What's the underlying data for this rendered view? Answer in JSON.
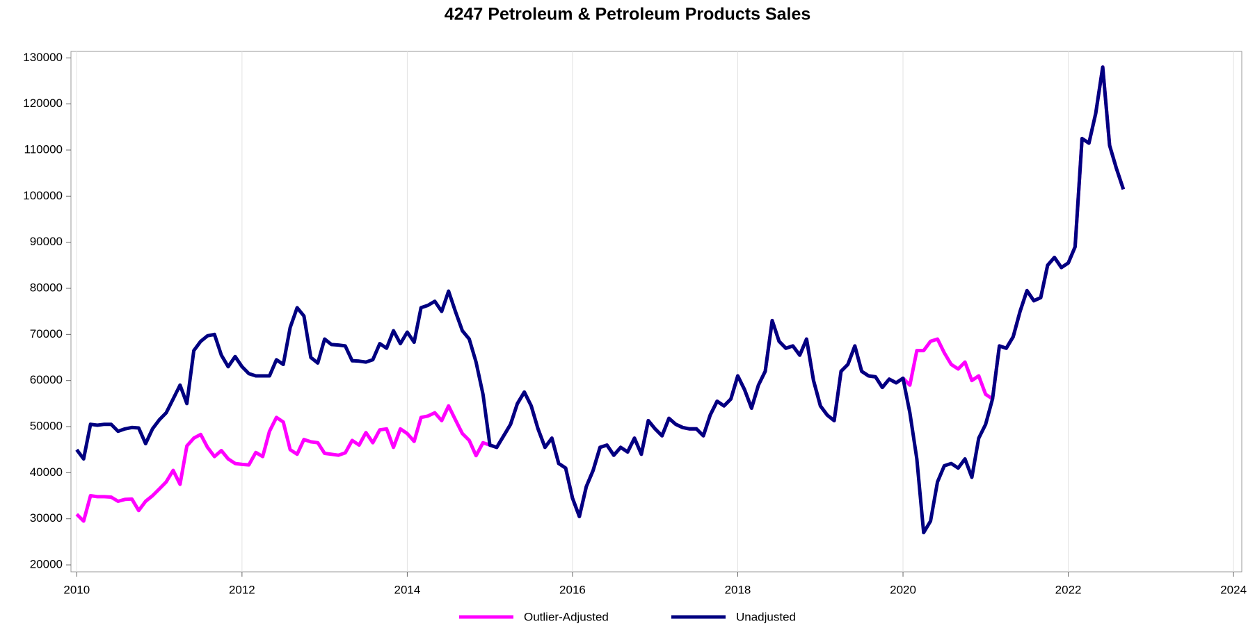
{
  "chart_data": {
    "type": "line",
    "title": "4247 Petroleum & Petroleum Products Sales",
    "x": [
      2010,
      2010.083,
      2010.167,
      2010.25,
      2010.333,
      2010.417,
      2010.5,
      2010.583,
      2010.667,
      2010.75,
      2010.833,
      2010.917,
      2011,
      2011.083,
      2011.167,
      2011.25,
      2011.333,
      2011.417,
      2011.5,
      2011.583,
      2011.667,
      2011.75,
      2011.833,
      2011.917,
      2012,
      2012.083,
      2012.167,
      2012.25,
      2012.333,
      2012.417,
      2012.5,
      2012.583,
      2012.667,
      2012.75,
      2012.833,
      2012.917,
      2013,
      2013.083,
      2013.167,
      2013.25,
      2013.333,
      2013.417,
      2013.5,
      2013.583,
      2013.667,
      2013.75,
      2013.833,
      2013.917,
      2014,
      2014.083,
      2014.167,
      2014.25,
      2014.333,
      2014.417,
      2014.5,
      2014.583,
      2014.667,
      2014.75,
      2014.833,
      2014.917,
      2015,
      2015.083,
      2015.167,
      2015.25,
      2015.333,
      2015.417,
      2015.5,
      2015.583,
      2015.667,
      2015.75,
      2015.833,
      2015.917,
      2016,
      2016.083,
      2016.167,
      2016.25,
      2016.333,
      2016.417,
      2016.5,
      2016.583,
      2016.667,
      2016.75,
      2016.833,
      2016.917,
      2017,
      2017.083,
      2017.167,
      2017.25,
      2017.333,
      2017.417,
      2017.5,
      2017.583,
      2017.667,
      2017.75,
      2017.833,
      2017.917,
      2018,
      2018.083,
      2018.167,
      2018.25,
      2018.333,
      2018.417,
      2018.5,
      2018.583,
      2018.667,
      2018.75,
      2018.833,
      2018.917,
      2019,
      2019.083,
      2019.167,
      2019.25,
      2019.333,
      2019.417,
      2019.5,
      2019.583,
      2019.667,
      2019.75,
      2019.833,
      2019.917,
      2020,
      2020.083,
      2020.167,
      2020.25,
      2020.333,
      2020.417,
      2020.5,
      2020.583,
      2020.667,
      2020.75,
      2020.833,
      2020.917,
      2021,
      2021.083,
      2021.167,
      2021.25,
      2021.333,
      2021.417,
      2021.5,
      2021.583,
      2021.667,
      2021.75,
      2021.833,
      2021.917,
      2022,
      2022.083,
      2022.167,
      2022.25,
      2022.333,
      2022.417,
      2022.5,
      2022.583,
      2022.667
    ],
    "series": [
      {
        "name": "Outlier-Adjusted",
        "color": "#ff00ff",
        "values": [
          31000,
          29500,
          35000,
          34800,
          34800,
          34700,
          33800,
          34200,
          34300,
          31800,
          33800,
          35000,
          36500,
          38000,
          40500,
          37500,
          45800,
          47500,
          48300,
          45500,
          43500,
          44800,
          43000,
          42000,
          41800,
          41700,
          44400,
          43500,
          49000,
          52000,
          51000,
          45000,
          44000,
          47200,
          46700,
          46500,
          44200,
          44000,
          43800,
          44300,
          47000,
          46000,
          48700,
          46500,
          49300,
          49500,
          45500,
          49500,
          48500,
          46800,
          52000,
          52300,
          53000,
          51300,
          54500,
          51500,
          48500,
          47000,
          43700,
          46500,
          46000,
          45500,
          48000,
          50500,
          55000,
          57500,
          54500,
          49500,
          45500,
          47500,
          42000,
          41000,
          34500,
          30500,
          37000,
          40500,
          45500,
          46000,
          43800,
          45500,
          44500,
          47500,
          44000,
          51300,
          49500,
          48000,
          51800,
          50500,
          49800,
          49500,
          49500,
          48000,
          52500,
          55500,
          54500,
          56000,
          61000,
          58000,
          54000,
          59000,
          62000,
          73000,
          68500,
          67000,
          67500,
          65500,
          69000,
          60000,
          54500,
          52500,
          51300,
          62000,
          63500,
          67500,
          62000,
          61000,
          60800,
          58500,
          60300,
          59500,
          60500,
          59000,
          66500,
          66500,
          68500,
          69000,
          66000,
          63500,
          62500,
          64000,
          60000,
          61000,
          57000,
          56000,
          67500,
          67000,
          69500,
          75000,
          79500,
          77300,
          78000,
          85000,
          86700,
          84500,
          85500,
          89000,
          112500,
          111500,
          118000,
          128000,
          111000,
          106000,
          101500
        ]
      },
      {
        "name": "Unadjusted",
        "color": "#000080",
        "values": [
          45000,
          43000,
          50500,
          50300,
          50500,
          50500,
          49000,
          49500,
          49800,
          49700,
          46300,
          49500,
          51500,
          53000,
          56000,
          59000,
          55000,
          66500,
          68500,
          69700,
          70000,
          65500,
          63000,
          65200,
          63000,
          61500,
          61000,
          61000,
          61000,
          64500,
          63500,
          71500,
          75800,
          74000,
          65000,
          63800,
          69000,
          67800,
          67700,
          67500,
          64300,
          64200,
          64000,
          64500,
          68000,
          67000,
          70800,
          68000,
          70500,
          68300,
          75800,
          76300,
          77200,
          75000,
          79400,
          75000,
          70800,
          69000,
          64000,
          57000,
          46000,
          45500,
          48000,
          50500,
          55000,
          57500,
          54500,
          49500,
          45500,
          47500,
          42000,
          41000,
          34500,
          30500,
          37000,
          40500,
          45500,
          46000,
          43800,
          45500,
          44500,
          47500,
          44000,
          51300,
          49500,
          48000,
          51800,
          50500,
          49800,
          49500,
          49500,
          48000,
          52500,
          55500,
          54500,
          56000,
          61000,
          58000,
          54000,
          59000,
          62000,
          73000,
          68500,
          67000,
          67500,
          65500,
          69000,
          60000,
          54500,
          52500,
          51300,
          62000,
          63500,
          67500,
          62000,
          61000,
          60800,
          58500,
          60300,
          59500,
          60500,
          53000,
          43000,
          27000,
          29500,
          38000,
          41500,
          42000,
          41000,
          43000,
          39000,
          47500,
          50500,
          56000,
          67500,
          67000,
          69500,
          75000,
          79500,
          77300,
          78000,
          85000,
          86700,
          84500,
          85500,
          89000,
          112500,
          111500,
          118000,
          128000,
          111000,
          106000,
          101500
        ]
      }
    ],
    "xlim": [
      2009.93,
      2024.1
    ],
    "xticks": [
      2010,
      2012,
      2014,
      2016,
      2018,
      2020,
      2022,
      2024
    ],
    "ylim": [
      18500,
      131400
    ],
    "yticks": [
      20000,
      30000,
      40000,
      50000,
      60000,
      70000,
      80000,
      90000,
      100000,
      110000,
      120000,
      130000
    ],
    "grid": "x"
  }
}
